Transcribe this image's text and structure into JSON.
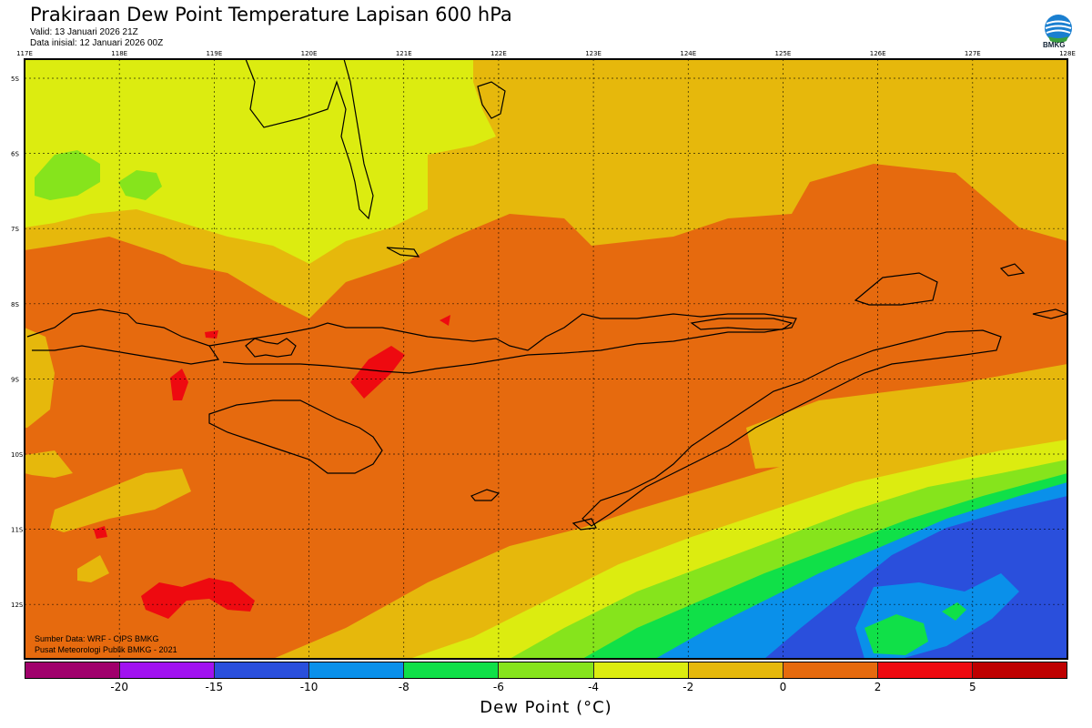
{
  "header": {
    "title": "Prakiraan Dew Point Temperature Lapisan 600 hPa",
    "valid": "Valid: 13 Januari 2026 21Z",
    "init": "Data inisial: 12 Januari 2026 00Z"
  },
  "logo": {
    "text": "BMKG",
    "icon": "bmkg-logo-icon"
  },
  "axes": {
    "longitudes": [
      "117E",
      "118E",
      "119E",
      "120E",
      "121E",
      "122E",
      "123E",
      "124E",
      "125E",
      "126E",
      "127E",
      "128E"
    ],
    "latitudes": [
      "5S",
      "6S",
      "7S",
      "8S",
      "9S",
      "10S",
      "11S",
      "12S"
    ]
  },
  "colorbar": {
    "label": "Dew Point (°C)",
    "ticks": [
      "-20",
      "-15",
      "-10",
      "-8",
      "-6",
      "-4",
      "-2",
      "0",
      "2",
      "5"
    ],
    "colors": [
      "#a0006c",
      "#a112f0",
      "#2a4fdc",
      "#0a90ea",
      "#10e048",
      "#86e41c",
      "#dcec10",
      "#e6b80c",
      "#e66a0e",
      "#ee0a10",
      "#be0000"
    ]
  },
  "credits": {
    "source": "Sumber Data: WRF - CIPS BMKG",
    "center": "Pusat Meteorologi Publik BMKG - 2021"
  },
  "fields": {
    "bg_value": "0 to 2",
    "bg_color": "#e66a0e"
  }
}
